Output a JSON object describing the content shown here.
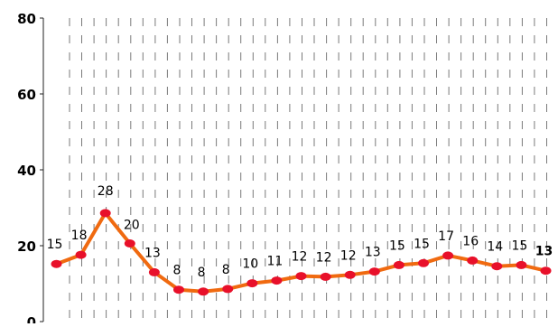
{
  "chart_data": {
    "type": "line",
    "title": "",
    "xlabel": "",
    "ylabel": "",
    "ylim": [
      0,
      80
    ],
    "yticks": [
      "0",
      "20",
      "40",
      "60",
      "80"
    ],
    "grid": "vertical-dashed",
    "legend": "none",
    "series": [
      {
        "values": [
          15,
          18,
          28,
          20,
          13,
          8,
          8,
          8,
          10,
          11,
          12,
          12,
          12,
          13,
          15,
          15,
          17,
          16,
          14,
          15,
          13
        ],
        "exact": [
          15.2,
          17.6,
          28.6,
          20.6,
          13.0,
          8.4,
          7.9,
          8.6,
          10.1,
          10.8,
          12.0,
          11.8,
          12.3,
          13.2,
          14.9,
          15.4,
          17.4,
          16.1,
          14.6,
          14.9,
          13.4
        ],
        "line_color": "#f06a10",
        "marker_color": "#e8102a"
      }
    ]
  }
}
